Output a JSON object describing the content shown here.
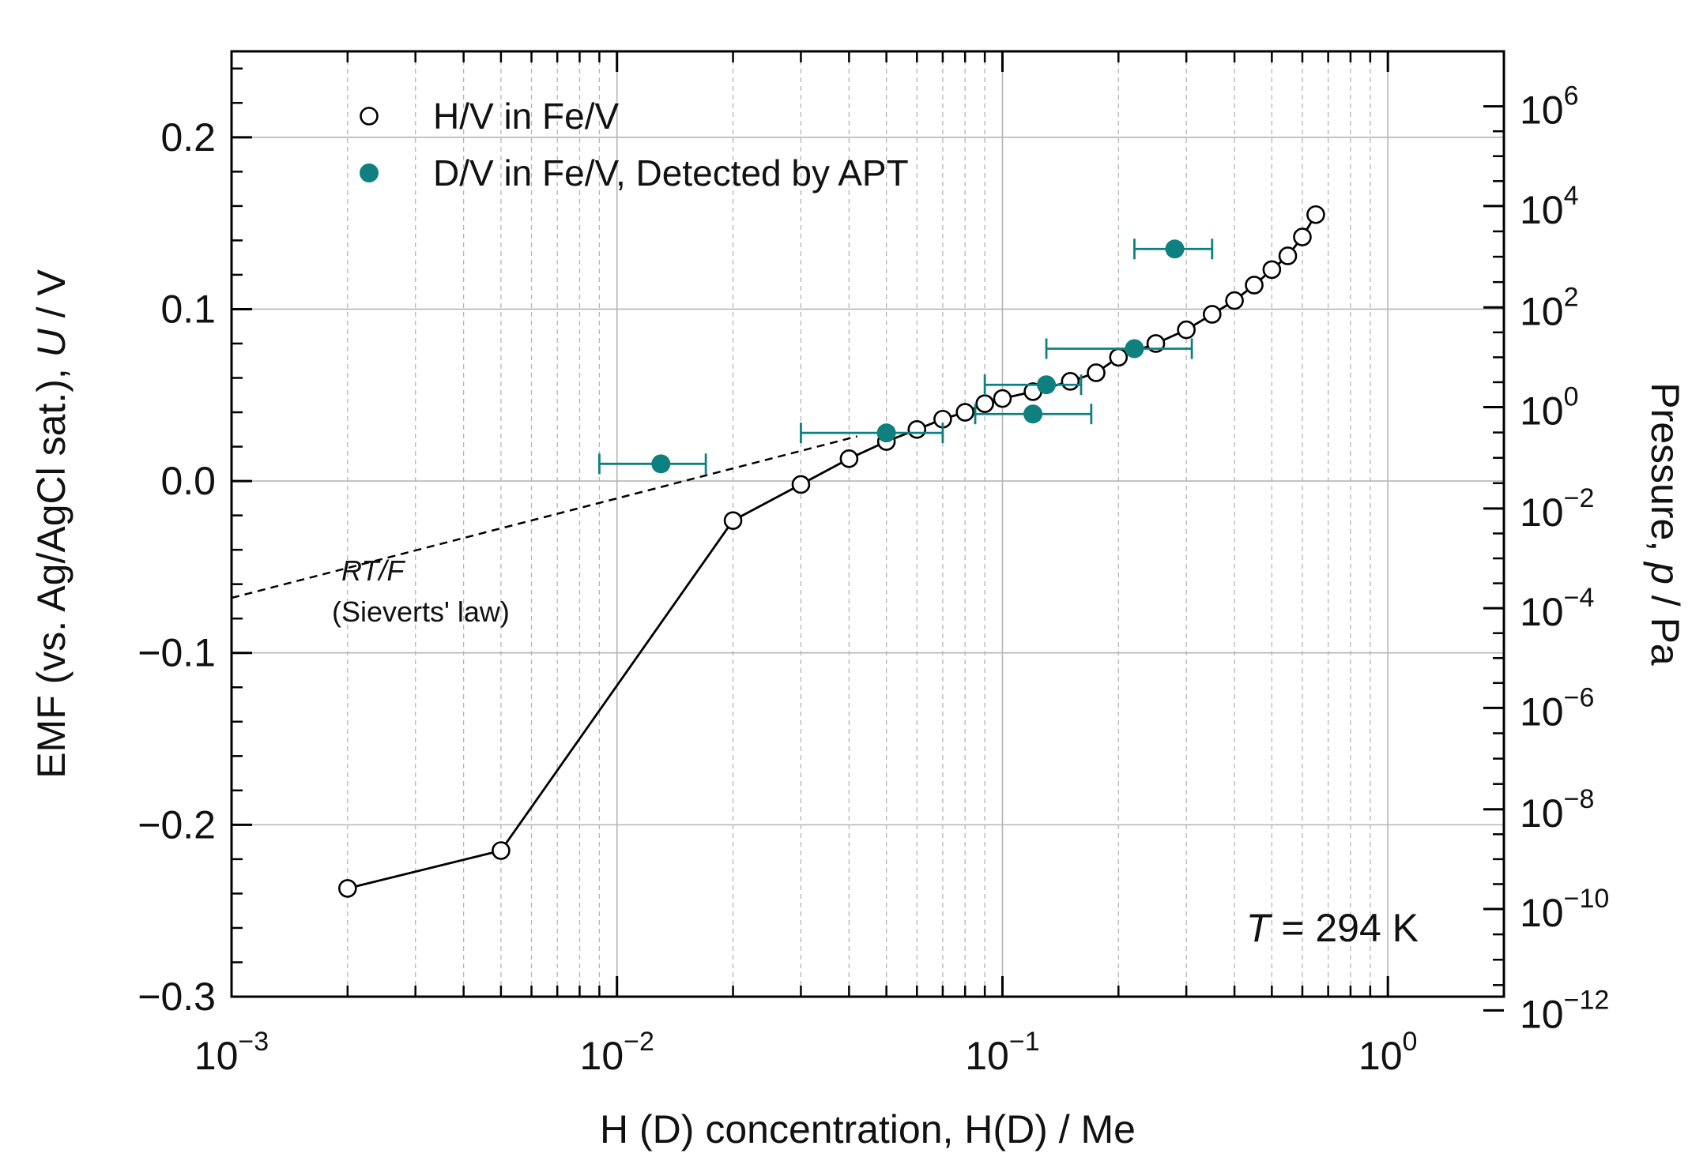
{
  "chart_data": {
    "type": "scatter",
    "title": "",
    "xlabel": "H (D) concentration, H(D) / Me",
    "ylabel_left": {
      "prefix": "EMF (vs. Ag/AgCl sat.), ",
      "italic": "U",
      "suffix": " / V"
    },
    "ylabel_right": {
      "prefix": "Pressure, ",
      "italic": "p",
      "suffix": " / Pa"
    },
    "x_scale": "log",
    "xlim": [
      0.001,
      2.0
    ],
    "ylim": [
      -0.3,
      0.25
    ],
    "x_ticks": [
      {
        "base": "10",
        "exp": "−3"
      },
      {
        "base": "10",
        "exp": "−2"
      },
      {
        "base": "10",
        "exp": "−1"
      },
      {
        "base": "10",
        "exp": "0"
      }
    ],
    "y_ticks": [
      "−0.3",
      "−0.2",
      "−0.1",
      "0.0",
      "0.1",
      "0.2"
    ],
    "y_tick_values": [
      -0.3,
      -0.2,
      -0.1,
      0.0,
      0.1,
      0.2
    ],
    "right_ticks": [
      {
        "base": "10",
        "exp": "6"
      },
      {
        "base": "10",
        "exp": "4"
      },
      {
        "base": "10",
        "exp": "2"
      },
      {
        "base": "10",
        "exp": "0"
      },
      {
        "base": "10",
        "exp": "−2"
      },
      {
        "base": "10",
        "exp": "−4"
      },
      {
        "base": "10",
        "exp": "−6"
      },
      {
        "base": "10",
        "exp": "−8"
      },
      {
        "base": "10",
        "exp": "−10"
      },
      {
        "base": "10",
        "exp": "−12"
      }
    ],
    "right_tick_emf": [
      0.218,
      0.16,
      0.101,
      0.043,
      -0.016,
      -0.074,
      -0.132,
      -0.191,
      -0.249,
      -0.308
    ],
    "grid": true,
    "legend_position": "top-left",
    "series": [
      {
        "name": "H/V in Fe/V",
        "marker": "open-circle",
        "connected": true,
        "color": "#000000",
        "points": [
          {
            "x": 0.002,
            "y": -0.237
          },
          {
            "x": 0.005,
            "y": -0.215
          },
          {
            "x": 0.02,
            "y": -0.023
          },
          {
            "x": 0.03,
            "y": -0.002
          },
          {
            "x": 0.04,
            "y": 0.013
          },
          {
            "x": 0.05,
            "y": 0.023
          },
          {
            "x": 0.06,
            "y": 0.03
          },
          {
            "x": 0.07,
            "y": 0.036
          },
          {
            "x": 0.08,
            "y": 0.04
          },
          {
            "x": 0.09,
            "y": 0.045
          },
          {
            "x": 0.1,
            "y": 0.048
          },
          {
            "x": 0.12,
            "y": 0.052
          },
          {
            "x": 0.15,
            "y": 0.058
          },
          {
            "x": 0.175,
            "y": 0.063
          },
          {
            "x": 0.2,
            "y": 0.072
          },
          {
            "x": 0.25,
            "y": 0.08
          },
          {
            "x": 0.3,
            "y": 0.088
          },
          {
            "x": 0.35,
            "y": 0.097
          },
          {
            "x": 0.4,
            "y": 0.105
          },
          {
            "x": 0.45,
            "y": 0.114
          },
          {
            "x": 0.5,
            "y": 0.123
          },
          {
            "x": 0.55,
            "y": 0.131
          },
          {
            "x": 0.6,
            "y": 0.142
          },
          {
            "x": 0.65,
            "y": 0.155
          }
        ]
      },
      {
        "name": "D/V in Fe/V, Detected by APT",
        "marker": "filled-circle",
        "connected": false,
        "color": "#0e8080",
        "points": [
          {
            "x": 0.013,
            "y": 0.01,
            "xerr": [
              0.009,
              0.017
            ]
          },
          {
            "x": 0.05,
            "y": 0.028,
            "xerr": [
              0.03,
              0.07
            ]
          },
          {
            "x": 0.12,
            "y": 0.039,
            "xerr": [
              0.085,
              0.17
            ]
          },
          {
            "x": 0.13,
            "y": 0.056,
            "xerr": [
              0.09,
              0.16
            ]
          },
          {
            "x": 0.22,
            "y": 0.077,
            "xerr": [
              0.13,
              0.31
            ]
          },
          {
            "x": 0.28,
            "y": 0.135,
            "xerr": [
              0.22,
              0.35
            ]
          }
        ]
      }
    ],
    "sieverts_line": {
      "style": "dashed",
      "points": [
        {
          "x": 0.001,
          "y": -0.068
        },
        {
          "x": 0.042,
          "y": 0.026
        }
      ],
      "label_italic": "RT/F",
      "label": "(Sieverts' law)"
    },
    "annotation": {
      "italic": "T",
      "text": " = 294 K"
    }
  }
}
